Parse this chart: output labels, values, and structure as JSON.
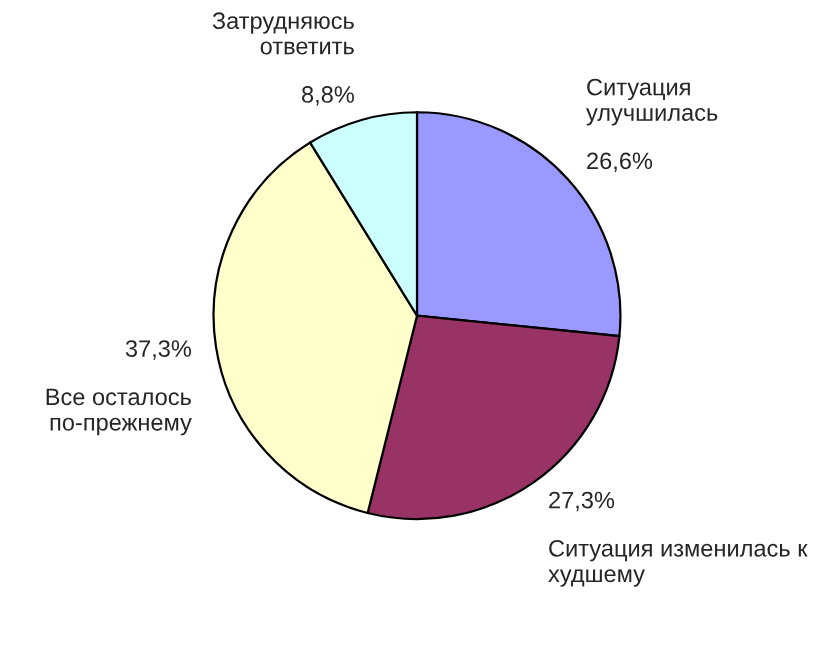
{
  "chart_data": {
    "type": "pie",
    "categories": [
      "Ситуация\nулучшилась",
      "Ситуация изменилась к\nхудшему",
      "Все осталось\nпо-прежнему",
      "Затрудняюсь\nответить"
    ],
    "values": [
      26.6,
      27.3,
      37.3,
      8.8
    ],
    "value_labels": [
      "26,6%",
      "27,3%",
      "37,3%",
      "8,8%"
    ],
    "colors": [
      "#9999ff",
      "#993366",
      "#ffffcc",
      "#ccffff"
    ],
    "legend": false
  }
}
